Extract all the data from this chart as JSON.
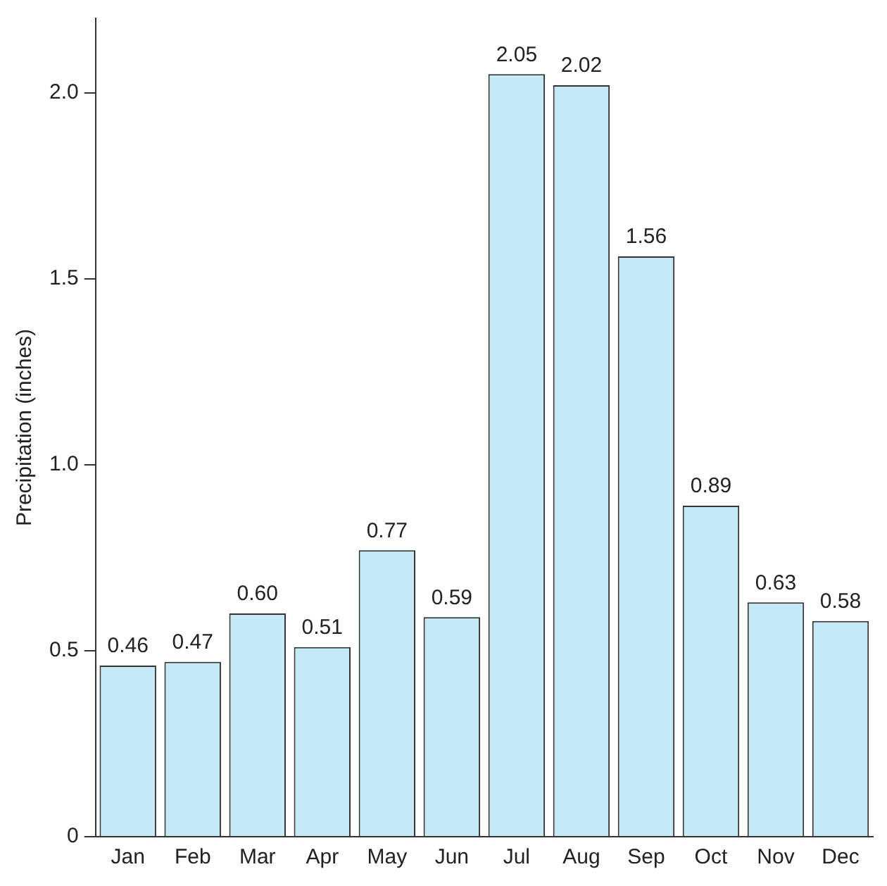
{
  "chart_data": {
    "type": "bar",
    "ylabel": "Precipitation (inches)",
    "categories": [
      "Jan",
      "Feb",
      "Mar",
      "Apr",
      "May",
      "Jun",
      "Jul",
      "Aug",
      "Sep",
      "Oct",
      "Nov",
      "Dec"
    ],
    "values": [
      0.46,
      0.47,
      0.6,
      0.51,
      0.77,
      0.59,
      2.05,
      2.02,
      1.56,
      0.89,
      0.63,
      0.58
    ],
    "value_labels": [
      "0.46",
      "0.47",
      "0.60",
      "0.51",
      "0.77",
      "0.59",
      "2.05",
      "2.02",
      "1.56",
      "0.89",
      "0.63",
      "0.58"
    ],
    "color": "#c6e9f8",
    "ylim": [
      0,
      2.2
    ],
    "yticks": [
      0,
      {
        "value": 0.5,
        "label": "0.5"
      },
      {
        "value": 1,
        "label": "1.0"
      },
      {
        "value": 1.5,
        "label": "1.5"
      },
      {
        "value": 2,
        "label": "2.0"
      }
    ],
    "grid": false,
    "legend": false
  }
}
